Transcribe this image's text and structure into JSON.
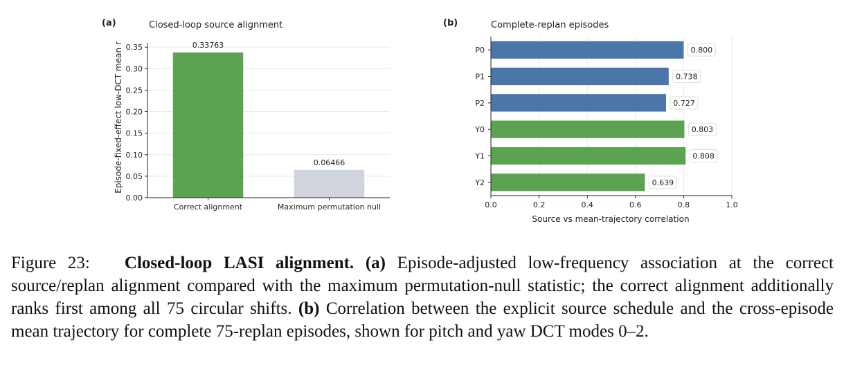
{
  "chart_data": [
    {
      "type": "bar",
      "panel": "(a)",
      "title": "Closed-loop source alignment",
      "ylabel": "Episode-fixed-effect low-DCT mean r",
      "xlabel": "",
      "categories": [
        "Correct alignment",
        "Maximum permutation null"
      ],
      "values": [
        0.33763,
        0.06466
      ],
      "data_labels": [
        "0.33763",
        "0.06466"
      ],
      "colors": [
        "#5ba350",
        "#d0d4dc"
      ],
      "ylim": [
        0,
        0.36
      ],
      "yticks": [
        0,
        0.05,
        0.1,
        0.15,
        0.2,
        0.25,
        0.3,
        0.35
      ],
      "ytick_labels": [
        "0.00",
        "0.05",
        "0.10",
        "0.15",
        "0.20",
        "0.25",
        "0.30",
        "0.35"
      ],
      "grid": true
    },
    {
      "type": "bar",
      "orientation": "horizontal",
      "panel": "(b)",
      "title": "Complete-replan episodes",
      "xlabel": "Source vs mean-trajectory correlation",
      "ylabel": "",
      "categories": [
        "P0",
        "P1",
        "P2",
        "Y0",
        "Y1",
        "Y2"
      ],
      "values": [
        0.8,
        0.738,
        0.727,
        0.803,
        0.808,
        0.639
      ],
      "data_labels": [
        "0.800",
        "0.738",
        "0.727",
        "0.803",
        "0.808",
        "0.639"
      ],
      "colors": [
        "#4a76a8",
        "#4a76a8",
        "#4a76a8",
        "#5ba350",
        "#5ba350",
        "#5ba350"
      ],
      "xlim": [
        0,
        1.0
      ],
      "xticks": [
        0,
        0.2,
        0.4,
        0.6,
        0.8,
        1.0
      ],
      "xtick_labels": [
        "0.0",
        "0.2",
        "0.4",
        "0.6",
        "0.8",
        "1.0"
      ],
      "grid": true
    }
  ],
  "caption": {
    "label": "Figure 23:",
    "bold_title": "Closed-loop LASI alignment.",
    "part_a_tag": "(a)",
    "part_a_text": " Episode-adjusted low-frequency association at the correct source/replan alignment compared with the maximum permutation-null statistic; the correct alignment additionally ranks first among all 75 circular shifts. ",
    "part_b_tag": "(b)",
    "part_b_text": " Correlation between the explicit source schedule and the cross-episode mean trajectory for complete 75-replan episodes, shown for pitch and yaw DCT modes 0–2."
  }
}
